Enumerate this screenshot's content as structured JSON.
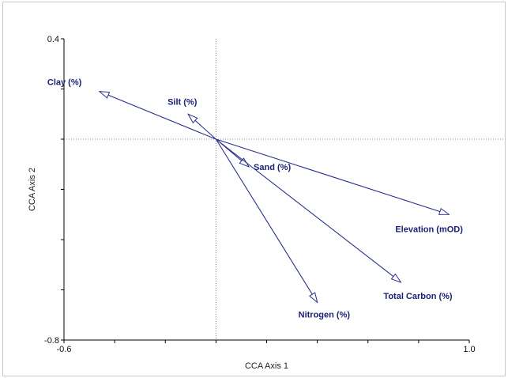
{
  "chart_data": {
    "type": "scatter",
    "subtype": "biplot-vectors",
    "xlabel": "CCA Axis 1",
    "ylabel": "CCA Axis 2",
    "xlim": [
      -0.6,
      1.0
    ],
    "ylim": [
      -0.8,
      0.4
    ],
    "x_tick_labels": [
      "-0.6",
      "1.0"
    ],
    "y_tick_labels": [
      "0.4",
      "-0.8"
    ],
    "origin_reference_lines": true,
    "grid": false,
    "vectors": [
      {
        "label": "Clay (%)",
        "x": -0.46,
        "y": 0.19
      },
      {
        "label": "Silt (%)",
        "x": -0.11,
        "y": 0.1
      },
      {
        "label": "Sand (%)",
        "x": 0.13,
        "y": -0.11
      },
      {
        "label": "Elevation (mOD)",
        "x": 0.92,
        "y": -0.3
      },
      {
        "label": "Total Carbon (%)",
        "x": 0.73,
        "y": -0.57
      },
      {
        "label": "Nitrogen (%)",
        "x": 0.4,
        "y": -0.65
      }
    ],
    "colors": {
      "vector": "#2a2f8c",
      "label": "#1c2175",
      "axis": "#000000",
      "reference_line": "#888888"
    }
  }
}
